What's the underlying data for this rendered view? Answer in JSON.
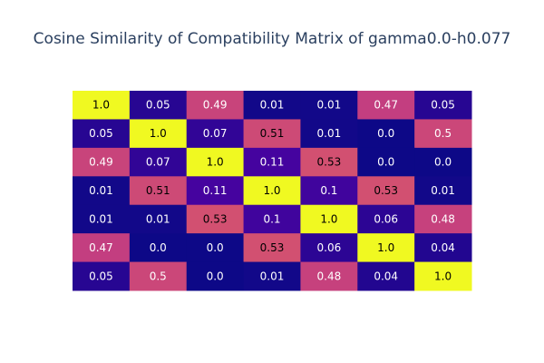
{
  "chart_data": {
    "type": "heatmap",
    "title": "Cosine Similarity of Compatibility Matrix of gamma0.0-h0.077",
    "xlabel": "",
    "ylabel": "",
    "grid": false,
    "show_axes": false,
    "colorscale": "plasma",
    "colorscale_colors": [
      "#0d0887",
      "#46039f",
      "#7201a8",
      "#9c179e",
      "#bd3786",
      "#d8576b",
      "#ed7953",
      "#fb9f3a",
      "#fdca26",
      "#f0f921"
    ],
    "zrange": [
      0,
      1
    ],
    "z": [
      [
        "1.0",
        "0.05",
        "0.49",
        "0.01",
        "0.01",
        "0.47",
        "0.05"
      ],
      [
        "0.05",
        "1.0",
        "0.07",
        "0.51",
        "0.01",
        "0.0",
        "0.5"
      ],
      [
        "0.49",
        "0.07",
        "1.0",
        "0.11",
        "0.53",
        "0.0",
        "0.0"
      ],
      [
        "0.01",
        "0.51",
        "0.11",
        "1.0",
        "0.1",
        "0.53",
        "0.01"
      ],
      [
        "0.01",
        "0.01",
        "0.53",
        "0.1",
        "1.0",
        "0.06",
        "0.48"
      ],
      [
        "0.47",
        "0.0",
        "0.0",
        "0.53",
        "0.06",
        "1.0",
        "0.04"
      ],
      [
        "0.05",
        "0.5",
        "0.0",
        "0.01",
        "0.48",
        "0.04",
        "1.0"
      ]
    ]
  }
}
